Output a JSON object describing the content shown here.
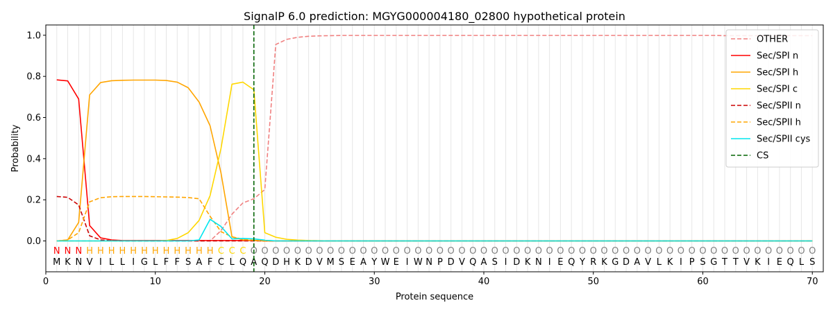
{
  "chart_data": {
    "type": "line",
    "title": "SignalP 6.0 prediction: MGYG000004180_02800 hypothetical protein",
    "xlabel": "Protein sequence",
    "ylabel": "Probability",
    "xlim": [
      0,
      71
    ],
    "ylim": [
      -0.15,
      1.05
    ],
    "xticks": [
      "0",
      "10",
      "20",
      "30",
      "40",
      "50",
      "60",
      "70"
    ],
    "yticks": [
      "0.0",
      "0.2",
      "0.4",
      "0.6",
      "0.8",
      "1.0"
    ],
    "grid": "vertical lines at every residue",
    "legend_position": "top-right",
    "sequence": "MKNVILLIGLFFSAFCLQAQDHKDVMSEAYWEIWNPDVQASIDKNIEQYRKGDAVLKIPSGTTVKIEQLS",
    "labels": "NNNHHHHHHHHHHHHCCCOOOOOOOOOOOOOOOOOOOOOOOOOOOOOOOOOOOOOOOOOOOOOOOOOOOO",
    "label_colors": {
      "N": "#ff0000",
      "H": "#ffa500",
      "C": "#ffd700",
      "O": "#808080"
    },
    "cleavage_site": 19,
    "series": [
      {
        "name": "OTHER",
        "color": "#f08080",
        "dash": true,
        "values": [
          0.0,
          0.0,
          0.0,
          0.0,
          0.0,
          0.0,
          0.0,
          0.0,
          0.0,
          0.0,
          0.0,
          0.0,
          0.0,
          0.0,
          0.0,
          0.05,
          0.13,
          0.185,
          0.205,
          0.25,
          0.955,
          0.98,
          0.99,
          0.995,
          0.997,
          0.998,
          0.999,
          0.999,
          0.999,
          0.999,
          0.999,
          0.999,
          0.999,
          0.999,
          0.999,
          0.999,
          0.999,
          0.999,
          0.999,
          0.999,
          0.999,
          0.999,
          0.999,
          0.999,
          0.999,
          0.999,
          0.999,
          0.999,
          0.999,
          0.999,
          0.999,
          0.999,
          0.999,
          0.999,
          0.999,
          0.999,
          0.999,
          0.999,
          0.999,
          0.999,
          0.999,
          0.998,
          0.998,
          0.998,
          0.998,
          0.998,
          0.998,
          0.998,
          0.998,
          0.998
        ]
      },
      {
        "name": "Sec/SPI n",
        "color": "#ff0000",
        "dash": false,
        "values": [
          0.783,
          0.778,
          0.69,
          0.075,
          0.015,
          0.005,
          0.002,
          0.002,
          0.002,
          0.002,
          0.002,
          0.002,
          0.002,
          0.002,
          0.002,
          0.002,
          0.002,
          0.002,
          0.002,
          0.0,
          0.0,
          0.0,
          0.0,
          0.0,
          0.0,
          0.0,
          0.0,
          0.0,
          0.0,
          0.0,
          0.0,
          0.0,
          0.0,
          0.0,
          0.0,
          0.0,
          0.0,
          0.0,
          0.0,
          0.0,
          0.0,
          0.0,
          0.0,
          0.0,
          0.0,
          0.0,
          0.0,
          0.0,
          0.0,
          0.0,
          0.0,
          0.0,
          0.0,
          0.0,
          0.0,
          0.0,
          0.0,
          0.0,
          0.0,
          0.0,
          0.0,
          0.0,
          0.0,
          0.0,
          0.0,
          0.0,
          0.0,
          0.0,
          0.0,
          0.0
        ]
      },
      {
        "name": "Sec/SPI h",
        "color": "#ffa500",
        "dash": false,
        "values": [
          0.0,
          0.005,
          0.09,
          0.71,
          0.77,
          0.779,
          0.781,
          0.782,
          0.782,
          0.782,
          0.78,
          0.772,
          0.745,
          0.675,
          0.56,
          0.33,
          0.02,
          0.005,
          0.002,
          0.0,
          0.0,
          0.0,
          0.0,
          0.0,
          0.0,
          0.0,
          0.0,
          0.0,
          0.0,
          0.0,
          0.0,
          0.0,
          0.0,
          0.0,
          0.0,
          0.0,
          0.0,
          0.0,
          0.0,
          0.0,
          0.0,
          0.0,
          0.0,
          0.0,
          0.0,
          0.0,
          0.0,
          0.0,
          0.0,
          0.0,
          0.0,
          0.0,
          0.0,
          0.0,
          0.0,
          0.0,
          0.0,
          0.0,
          0.0,
          0.0,
          0.0,
          0.0,
          0.0,
          0.0,
          0.0,
          0.0,
          0.0,
          0.0,
          0.0,
          0.0
        ]
      },
      {
        "name": "Sec/SPI c",
        "color": "#ffd700",
        "dash": false,
        "values": [
          0.0,
          0.0,
          0.0,
          0.0,
          0.0,
          0.0,
          0.0,
          0.0,
          0.0,
          0.0,
          0.002,
          0.012,
          0.04,
          0.1,
          0.22,
          0.45,
          0.762,
          0.772,
          0.735,
          0.04,
          0.018,
          0.008,
          0.004,
          0.002,
          0.001,
          0.0,
          0.0,
          0.0,
          0.0,
          0.0,
          0.0,
          0.0,
          0.0,
          0.0,
          0.0,
          0.0,
          0.0,
          0.0,
          0.0,
          0.0,
          0.0,
          0.0,
          0.0,
          0.0,
          0.0,
          0.0,
          0.0,
          0.0,
          0.0,
          0.0,
          0.0,
          0.0,
          0.0,
          0.0,
          0.0,
          0.0,
          0.0,
          0.0,
          0.0,
          0.0,
          0.0,
          0.0,
          0.0,
          0.0,
          0.0,
          0.0,
          0.0,
          0.0,
          0.0,
          0.0
        ]
      },
      {
        "name": "Sec/SPII n",
        "color": "#cc0000",
        "dash": true,
        "values": [
          0.216,
          0.212,
          0.175,
          0.025,
          0.005,
          0.001,
          0.0,
          0.0,
          0.0,
          0.0,
          0.0,
          0.0,
          0.0,
          0.0,
          0.0,
          0.0,
          0.0,
          0.0,
          0.0,
          0.0,
          0.0,
          0.0,
          0.0,
          0.0,
          0.0,
          0.0,
          0.0,
          0.0,
          0.0,
          0.0,
          0.0,
          0.0,
          0.0,
          0.0,
          0.0,
          0.0,
          0.0,
          0.0,
          0.0,
          0.0,
          0.0,
          0.0,
          0.0,
          0.0,
          0.0,
          0.0,
          0.0,
          0.0,
          0.0,
          0.0,
          0.0,
          0.0,
          0.0,
          0.0,
          0.0,
          0.0,
          0.0,
          0.0,
          0.0,
          0.0,
          0.0,
          0.0,
          0.0,
          0.0,
          0.0,
          0.0,
          0.0,
          0.0,
          0.0,
          0.0
        ]
      },
      {
        "name": "Sec/SPII h",
        "color": "#ffa500",
        "dash": true,
        "values": [
          0.0,
          0.005,
          0.04,
          0.19,
          0.21,
          0.215,
          0.216,
          0.216,
          0.216,
          0.215,
          0.214,
          0.213,
          0.211,
          0.205,
          0.12,
          0.045,
          0.02,
          0.008,
          0.003,
          0.0,
          0.0,
          0.0,
          0.0,
          0.0,
          0.0,
          0.0,
          0.0,
          0.0,
          0.0,
          0.0,
          0.0,
          0.0,
          0.0,
          0.0,
          0.0,
          0.0,
          0.0,
          0.0,
          0.0,
          0.0,
          0.0,
          0.0,
          0.0,
          0.0,
          0.0,
          0.0,
          0.0,
          0.0,
          0.0,
          0.0,
          0.0,
          0.0,
          0.0,
          0.0,
          0.0,
          0.0,
          0.0,
          0.0,
          0.0,
          0.0,
          0.0,
          0.0,
          0.0,
          0.0,
          0.0,
          0.0,
          0.0,
          0.0,
          0.0,
          0.0
        ]
      },
      {
        "name": "Sec/SPII cys",
        "color": "#00e5ee",
        "dash": false,
        "values": [
          0.0,
          0.0,
          0.0,
          0.0,
          0.0,
          0.0,
          0.0,
          0.0,
          0.0,
          0.0,
          0.0,
          0.0,
          0.0,
          0.005,
          0.105,
          0.07,
          0.01,
          0.012,
          0.01,
          0.004,
          0.0,
          0.0,
          0.0,
          0.0,
          0.0,
          0.0,
          0.0,
          0.0,
          0.0,
          0.0,
          0.0,
          0.0,
          0.0,
          0.0,
          0.0,
          0.0,
          0.0,
          0.0,
          0.0,
          0.0,
          0.0,
          0.0,
          0.0,
          0.0,
          0.0,
          0.0,
          0.0,
          0.0,
          0.0,
          0.0,
          0.0,
          0.0,
          0.0,
          0.0,
          0.0,
          0.0,
          0.0,
          0.0,
          0.0,
          0.0,
          0.0,
          0.0,
          0.0,
          0.0,
          0.0,
          0.0,
          0.0,
          0.0,
          0.0,
          0.0
        ]
      },
      {
        "name": "CS",
        "color": "#006400",
        "dash": true,
        "values": []
      }
    ]
  }
}
